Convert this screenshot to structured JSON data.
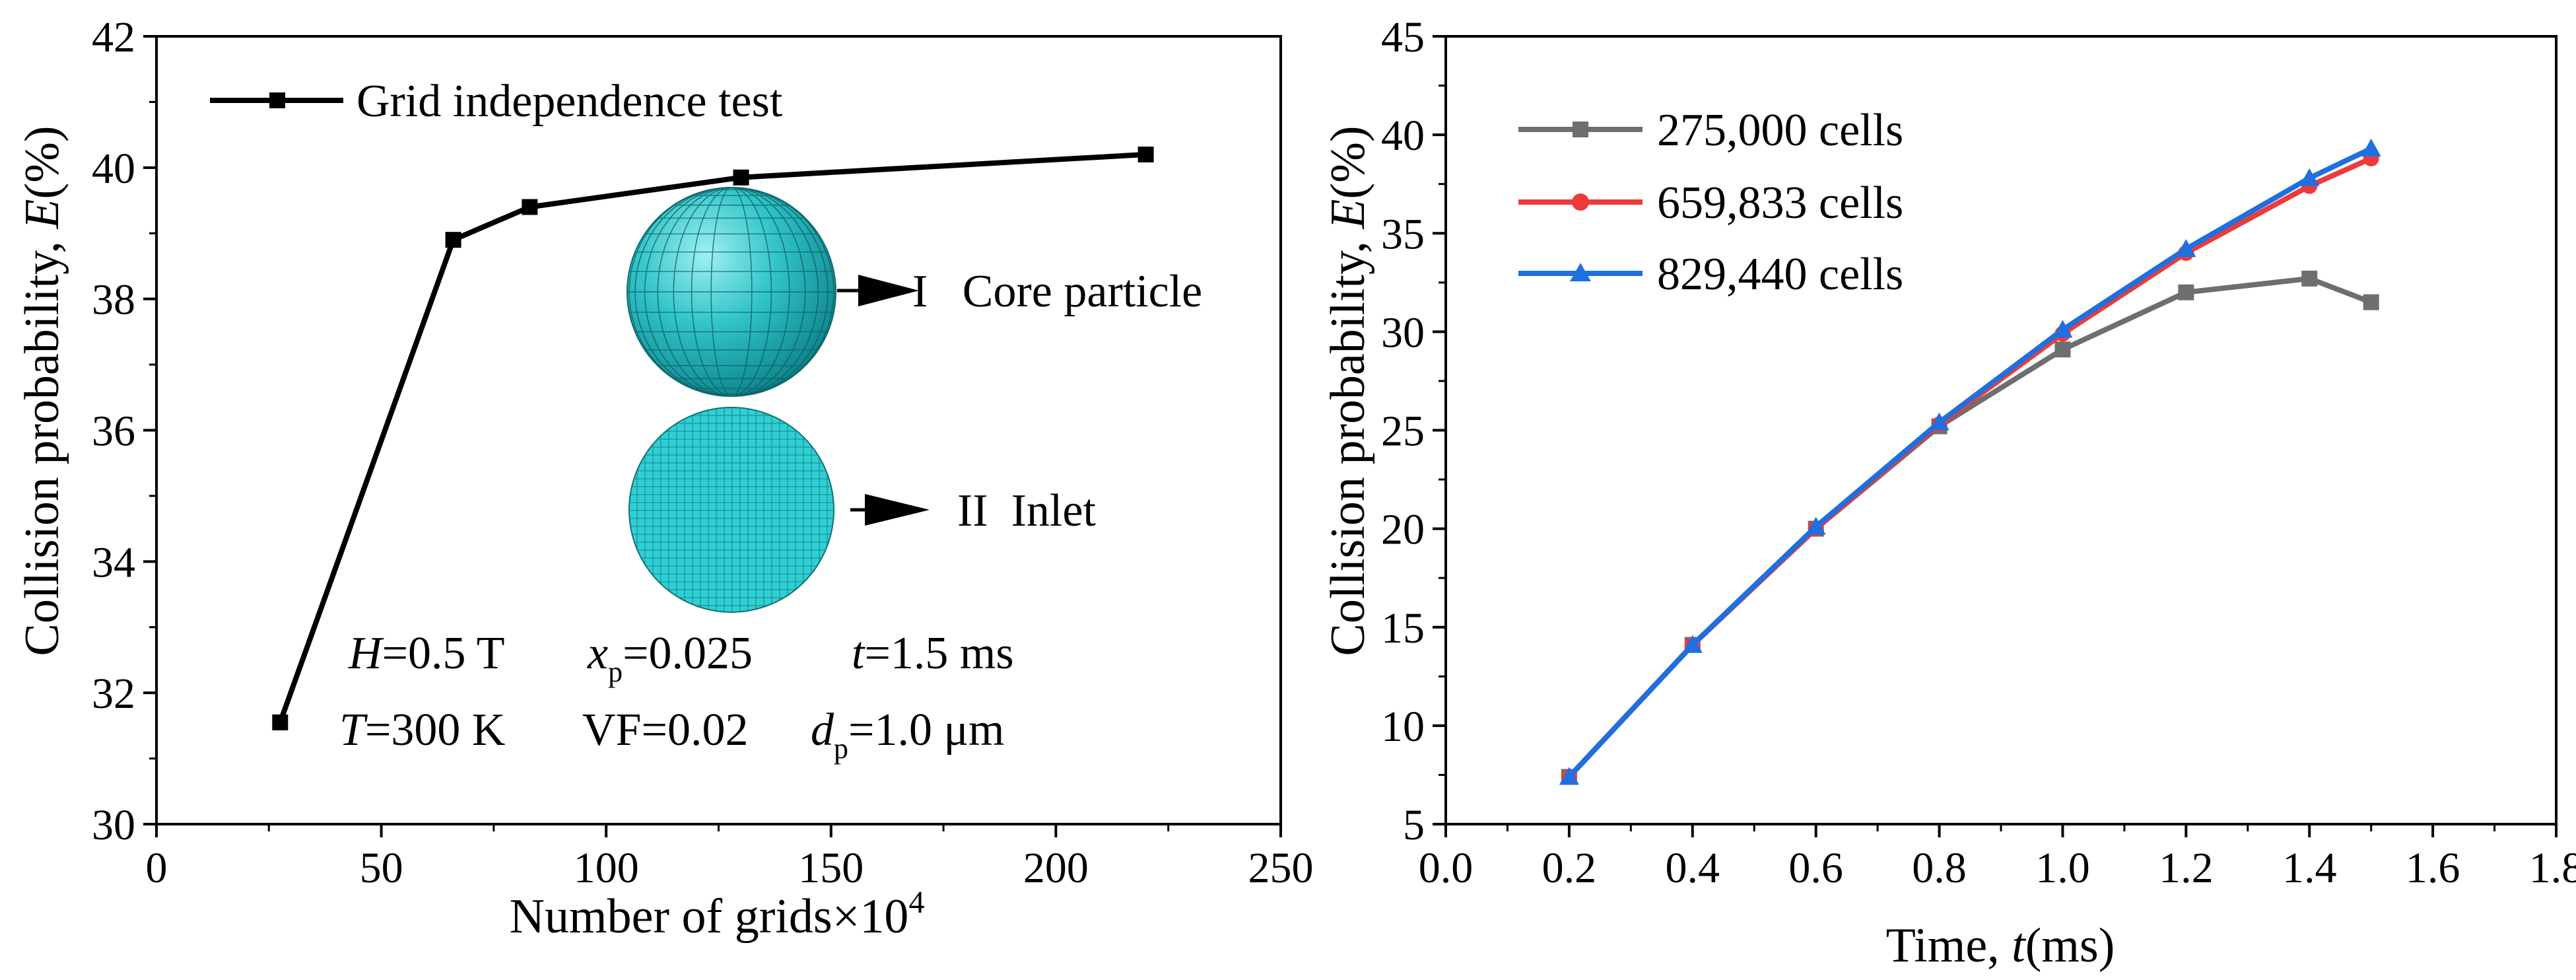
{
  "chart_data": [
    {
      "type": "line",
      "xlabel": "Number of grids×10",
      "xlabel_sup": "4",
      "ylabel": "Collision probability, ",
      "ylabel_var": "E",
      "ylabel_unit": "(%)",
      "xlim": [
        0,
        250
      ],
      "ylim": [
        30,
        42
      ],
      "xticks": [
        0,
        50,
        100,
        150,
        200,
        250
      ],
      "yticks": [
        30,
        32,
        34,
        36,
        38,
        40,
        42
      ],
      "grid": false,
      "legend_position": "top-left",
      "series": [
        {
          "name": "Grid independence test",
          "color": "#000000",
          "marker": "square",
          "x": [
            27.5,
            66,
            83,
            130,
            220
          ],
          "y": [
            31.55,
            38.9,
            39.4,
            39.85,
            40.2
          ]
        }
      ],
      "inset": {
        "label_core": "I   Core particle",
        "label_inlet": "II  Inlet",
        "mesh_color": "#22c2c8"
      },
      "annotations": {
        "row1": [
          {
            "var": "H",
            "text": "=0.5 T"
          },
          {
            "var": "x",
            "sub": "p",
            "text": "=0.025"
          },
          {
            "var": "t",
            "text": "=1.5 ms"
          }
        ],
        "row2": [
          {
            "var": "T",
            "text": "=300 K"
          },
          {
            "var": "",
            "text": "VF=0.02"
          },
          {
            "var": "d",
            "sub": "p",
            "text": "=1.0 μm"
          }
        ]
      }
    },
    {
      "type": "line",
      "xlabel": "Time, ",
      "xlabel_var": "t",
      "xlabel_unit": "(ms)",
      "ylabel": "Collision probability, ",
      "ylabel_var": "E",
      "ylabel_unit": "(%)",
      "xlim": [
        0,
        1.8
      ],
      "ylim": [
        5,
        45
      ],
      "xticks": [
        "0.0",
        "0.2",
        "0.4",
        "0.6",
        "0.8",
        "1.0",
        "1.2",
        "1.4",
        "1.6",
        "1.8"
      ],
      "yticks": [
        5,
        10,
        15,
        20,
        25,
        30,
        35,
        40,
        45
      ],
      "grid": false,
      "legend_position": "top-left",
      "series": [
        {
          "name": "275,000 cells",
          "color": "#6e6e6e",
          "marker": "square",
          "x": [
            0.2,
            0.4,
            0.6,
            0.8,
            1.0,
            1.2,
            1.4,
            1.5
          ],
          "y": [
            7.4,
            14.1,
            20.0,
            25.2,
            29.1,
            32.0,
            32.7,
            31.5
          ]
        },
        {
          "name": "659,833 cells",
          "color": "#ee3a3a",
          "marker": "circle",
          "x": [
            0.2,
            0.4,
            0.6,
            0.8,
            1.0,
            1.2,
            1.4,
            1.5
          ],
          "y": [
            7.4,
            14.1,
            20.0,
            25.3,
            29.9,
            34.0,
            37.4,
            38.8
          ]
        },
        {
          "name": "829,440 cells",
          "color": "#1f6fe0",
          "marker": "triangle",
          "x": [
            0.2,
            0.4,
            0.6,
            0.8,
            1.0,
            1.2,
            1.4,
            1.5
          ],
          "y": [
            7.4,
            14.1,
            20.1,
            25.4,
            30.1,
            34.2,
            37.8,
            39.3
          ]
        }
      ]
    }
  ]
}
